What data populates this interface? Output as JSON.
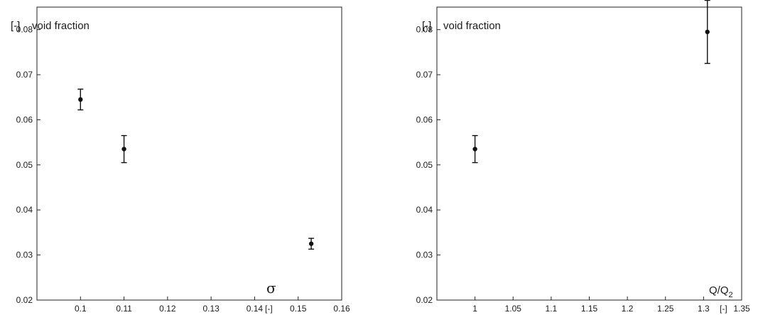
{
  "chart_data": [
    {
      "type": "scatter",
      "error_bars": true,
      "ylabel_unit": "[-]",
      "ylabel_text": "void fraction",
      "xlabel_symbol": "σ",
      "xlabel_unit": "[-]",
      "xlim": [
        0.09,
        0.16
      ],
      "ylim": [
        0.02,
        0.085
      ],
      "xticks": [
        0.1,
        0.11,
        0.12,
        0.13,
        0.14,
        0.15,
        0.16
      ],
      "xtick_labels": [
        "0.1",
        "0.11",
        "0.12",
        "0.13",
        "0.14",
        "0.15",
        "0.16"
      ],
      "yticks": [
        0.02,
        0.03,
        0.04,
        0.05,
        0.06,
        0.07,
        0.08
      ],
      "ytick_labels": [
        "0.02",
        "0.03",
        "0.04",
        "0.05",
        "0.06",
        "0.07",
        "0.08"
      ],
      "points": [
        {
          "x": 0.1,
          "y": 0.0645,
          "err_low": 0.0622,
          "err_high": 0.0668
        },
        {
          "x": 0.11,
          "y": 0.0535,
          "err_low": 0.0505,
          "err_high": 0.0565
        },
        {
          "x": 0.153,
          "y": 0.0325,
          "err_low": 0.0313,
          "err_high": 0.0337
        }
      ],
      "grid": false
    },
    {
      "type": "scatter",
      "error_bars": true,
      "ylabel_unit": "[-]",
      "ylabel_text": "void fraction",
      "xlabel_main": "Q/Q",
      "xlabel_sub": "2",
      "xlabel_unit": "[-]",
      "xlim": [
        0.95,
        1.35
      ],
      "ylim": [
        0.02,
        0.085
      ],
      "xticks": [
        1,
        1.05,
        1.1,
        1.15,
        1.2,
        1.25,
        1.3,
        1.35
      ],
      "xtick_labels": [
        "1",
        "1.05",
        "1.1",
        "1.15",
        "1.2",
        "1.25",
        "1.3",
        "1.35"
      ],
      "yticks": [
        0.02,
        0.03,
        0.04,
        0.05,
        0.06,
        0.07,
        0.08
      ],
      "ytick_labels": [
        "0.02",
        "0.03",
        "0.04",
        "0.05",
        "0.06",
        "0.07",
        "0.08"
      ],
      "points": [
        {
          "x": 1.0,
          "y": 0.0535,
          "err_low": 0.0505,
          "err_high": 0.0565
        },
        {
          "x": 1.305,
          "y": 0.0795,
          "err_low": 0.0725,
          "err_high": 0.0865
        }
      ],
      "grid": false
    }
  ]
}
